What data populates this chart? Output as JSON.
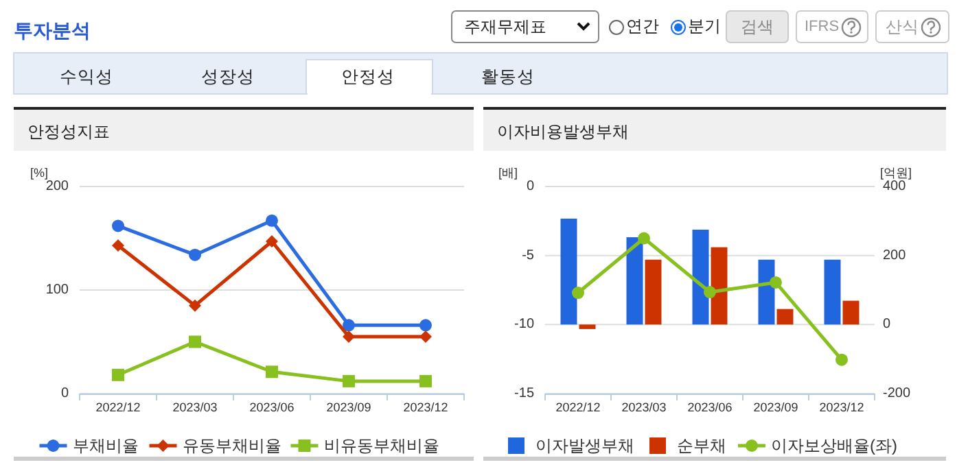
{
  "chart_data": [
    {
      "type": "other",
      "title": "투자분석",
      "annotations": [
        "주재무제표",
        "연간",
        "분기",
        "검색",
        "IFRS",
        "산식",
        "수익성",
        "성장성",
        "안정성",
        "활동성"
      ]
    },
    {
      "type": "line",
      "title": "안정성지표",
      "ylabel": "[%]",
      "categories": [
        "2022/12",
        "2023/03",
        "2023/06",
        "2023/09",
        "2023/12"
      ],
      "ylim": [
        0,
        200
      ],
      "yticks": [
        0,
        100,
        200
      ],
      "grid": "y",
      "legend": "bottom",
      "series": [
        {
          "name": "부채비율",
          "color": "#2b6ce0",
          "marker": "circle",
          "values": [
            162,
            134,
            167,
            66,
            66
          ]
        },
        {
          "name": "유동부채비율",
          "color": "#cc3300",
          "marker": "diamond",
          "values": [
            143,
            85,
            147,
            55,
            55
          ]
        },
        {
          "name": "비유동부채비율",
          "color": "#88c020",
          "marker": "square",
          "values": [
            18,
            50,
            21,
            12,
            12
          ]
        }
      ]
    },
    {
      "type": "bar",
      "title": "이자비용발생부채",
      "ylabel": "[배]",
      "y2label": "[억원]",
      "categories": [
        "2022/12",
        "2023/03",
        "2023/06",
        "2023/09",
        "2023/12"
      ],
      "ylim": [
        -15,
        0
      ],
      "yticks": [
        -15,
        -10,
        -5,
        0
      ],
      "y2lim": [
        -200,
        400
      ],
      "y2ticks": [
        -200,
        0,
        200,
        400
      ],
      "grid": "y",
      "legend": "bottom",
      "series": [
        {
          "name": "이자발생부채",
          "color": "#2266dd",
          "axis": "y2",
          "values": [
            307,
            253,
            275,
            188,
            188
          ]
        },
        {
          "name": "순부채",
          "color": "#cc3300",
          "axis": "y2",
          "values": [
            -13,
            188,
            224,
            45,
            69
          ]
        },
        {
          "name": "이자보상배율(좌)",
          "type": "line",
          "color": "#88c020",
          "marker": "circle",
          "axis": "y",
          "values": [
            -7.7,
            -3.75,
            -7.65,
            -6.95,
            -12.55
          ]
        }
      ]
    }
  ]
}
